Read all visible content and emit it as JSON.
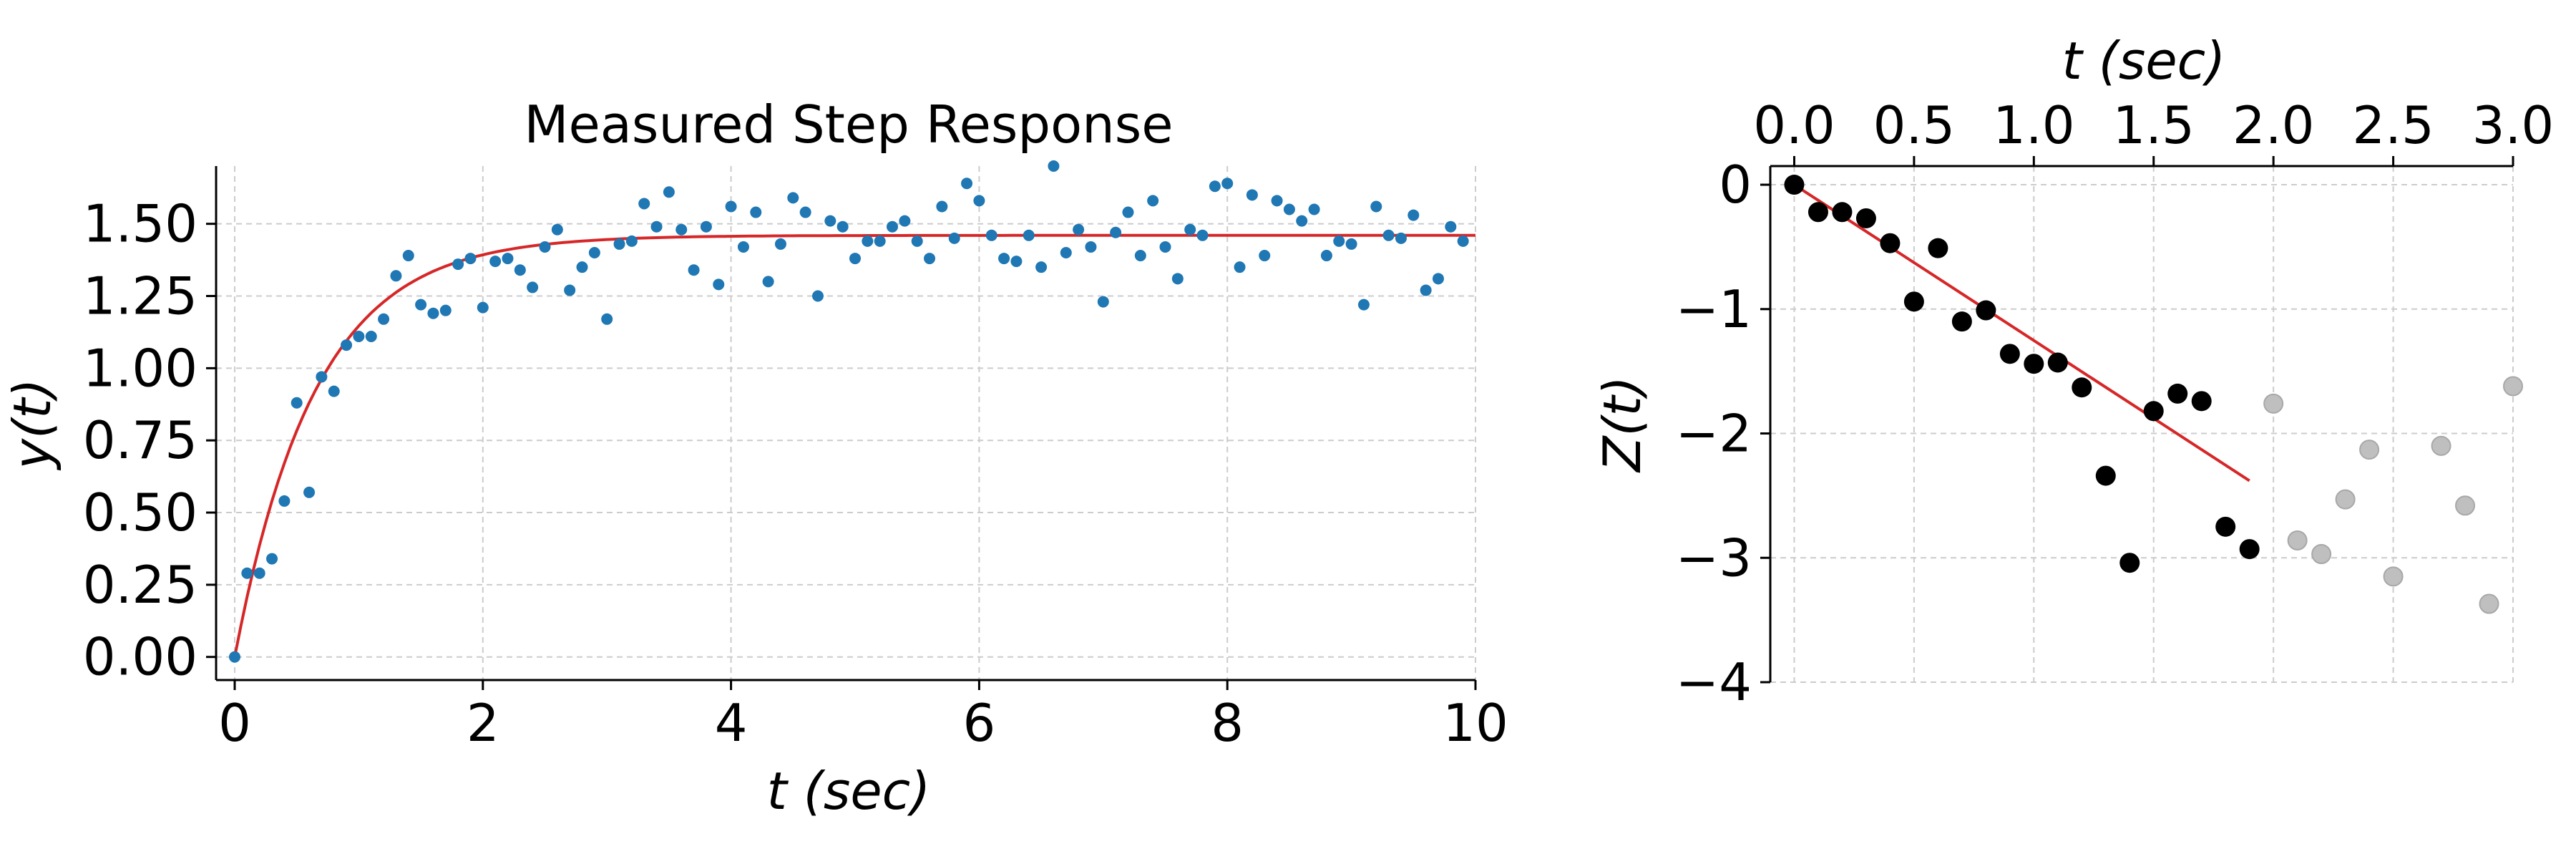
{
  "chart_data": [
    {
      "type": "scatter",
      "title": "Measured Step Response",
      "xlabel": "t (sec)",
      "ylabel": "y(t)",
      "xlim": [
        -0.15,
        10.0
      ],
      "ylim": [
        -0.08,
        1.7
      ],
      "x_ticks": [
        0,
        2,
        4,
        6,
        8,
        10
      ],
      "x_tick_labels": [
        "0",
        "2",
        "4",
        "6",
        "8",
        "10"
      ],
      "y_ticks": [
        0.0,
        0.25,
        0.5,
        0.75,
        1.0,
        1.25,
        1.5
      ],
      "y_tick_labels": [
        "0.00",
        "0.25",
        "0.50",
        "0.75",
        "1.00",
        "1.25",
        "1.50"
      ],
      "grid": true,
      "colors": {
        "points": "#1f77b4",
        "fit": "#d62728"
      },
      "series": [
        {
          "kind": "points",
          "x": [
            0.0,
            0.1,
            0.2,
            0.3,
            0.4,
            0.5,
            0.6,
            0.7,
            0.8,
            0.9,
            1.0,
            1.1,
            1.2,
            1.3,
            1.4,
            1.5,
            1.6,
            1.7,
            1.8,
            1.9,
            2.0,
            2.1,
            2.2,
            2.3,
            2.4,
            2.5,
            2.6,
            2.7,
            2.8,
            2.9,
            3.0,
            3.1,
            3.2,
            3.3,
            3.4,
            3.5,
            3.6,
            3.7,
            3.8,
            3.9,
            4.0,
            4.1,
            4.2,
            4.3,
            4.4,
            4.5,
            4.6,
            4.7,
            4.8,
            4.9,
            5.0,
            5.1,
            5.2,
            5.3,
            5.4,
            5.5,
            5.6,
            5.7,
            5.8,
            5.9,
            6.0,
            6.1,
            6.2,
            6.3,
            6.4,
            6.5,
            6.6,
            6.7,
            6.8,
            6.9,
            7.0,
            7.1,
            7.2,
            7.3,
            7.4,
            7.5,
            7.6,
            7.7,
            7.8,
            7.9,
            8.0,
            8.1,
            8.2,
            8.3,
            8.4,
            8.5,
            8.6,
            8.7,
            8.8,
            8.9,
            9.0,
            9.1,
            9.2,
            9.3,
            9.4,
            9.5,
            9.6,
            9.7,
            9.8,
            9.9
          ],
          "y": [
            0.0,
            0.29,
            0.29,
            0.34,
            0.54,
            0.88,
            0.57,
            0.97,
            0.92,
            1.08,
            1.11,
            1.11,
            1.17,
            1.32,
            1.39,
            1.22,
            1.19,
            1.2,
            1.36,
            1.38,
            1.21,
            1.37,
            1.38,
            1.34,
            1.28,
            1.42,
            1.48,
            1.27,
            1.35,
            1.4,
            1.17,
            1.43,
            1.44,
            1.57,
            1.49,
            1.61,
            1.48,
            1.34,
            1.49,
            1.29,
            1.56,
            1.42,
            1.54,
            1.3,
            1.43,
            1.59,
            1.54,
            1.25,
            1.51,
            1.49,
            1.38,
            1.44,
            1.44,
            1.49,
            1.51,
            1.44,
            1.38,
            1.56,
            1.45,
            1.64,
            1.58,
            1.46,
            1.38,
            1.37,
            1.46,
            1.35,
            1.7,
            1.4,
            1.48,
            1.42,
            1.23,
            1.47,
            1.54,
            1.39,
            1.58,
            1.42,
            1.31,
            1.48,
            1.46,
            1.63,
            1.64,
            1.35,
            1.6,
            1.39,
            1.58,
            1.55,
            1.51,
            1.55,
            1.39,
            1.44,
            1.43,
            1.22,
            1.56,
            1.46,
            1.45,
            1.53,
            1.27,
            1.31,
            1.49,
            1.44
          ]
        },
        {
          "kind": "fit-line",
          "function": "1.46*(1-exp(-t/0.65))"
        }
      ]
    },
    {
      "type": "scatter",
      "title": "",
      "xlabel": "t (sec)",
      "x_axis_position": "top",
      "ylabel": "Z(t)",
      "xlim": [
        -0.1,
        3.0
      ],
      "ylim": [
        -4.0,
        0.15
      ],
      "x_ticks": [
        0.0,
        0.5,
        1.0,
        1.5,
        2.0,
        2.5,
        3.0
      ],
      "x_tick_labels": [
        "0.0",
        "0.5",
        "1.0",
        "1.5",
        "2.0",
        "2.5",
        "3.0"
      ],
      "y_ticks": [
        0,
        -1,
        -2,
        -3,
        -4
      ],
      "y_tick_labels": [
        "0",
        "−1",
        "−2",
        "−3",
        "−4"
      ],
      "grid": true,
      "colors": {
        "points": "#000000",
        "excluded_points": "#bfbfbf",
        "fit": "#d62728"
      },
      "series": [
        {
          "kind": "points",
          "x": [
            0.0,
            0.1,
            0.2,
            0.3,
            0.4,
            0.5,
            0.6,
            0.7,
            0.8,
            0.9,
            1.0,
            1.1,
            1.2,
            1.3,
            1.4,
            1.5,
            1.6,
            1.7,
            1.8,
            1.9
          ],
          "y": [
            0.0,
            -0.22,
            -0.22,
            -0.27,
            -0.47,
            -0.94,
            -0.51,
            -1.1,
            -1.01,
            -1.36,
            -1.44,
            -1.43,
            -1.63,
            -2.34,
            -3.04,
            -1.82,
            -1.68,
            -1.74,
            -2.75,
            -2.93
          ]
        },
        {
          "kind": "excluded-points",
          "x": [
            2.0,
            2.1,
            2.2,
            2.3,
            2.4,
            2.5,
            2.7,
            2.8,
            2.9,
            3.0
          ],
          "y": [
            -1.76,
            -2.86,
            -2.97,
            -2.53,
            -2.13,
            -3.15,
            -2.1,
            -2.58,
            -3.37,
            -1.62
          ]
        },
        {
          "kind": "fit-line",
          "x": [
            0.0,
            1.9
          ],
          "y": [
            0.0,
            -2.38
          ]
        }
      ]
    }
  ]
}
